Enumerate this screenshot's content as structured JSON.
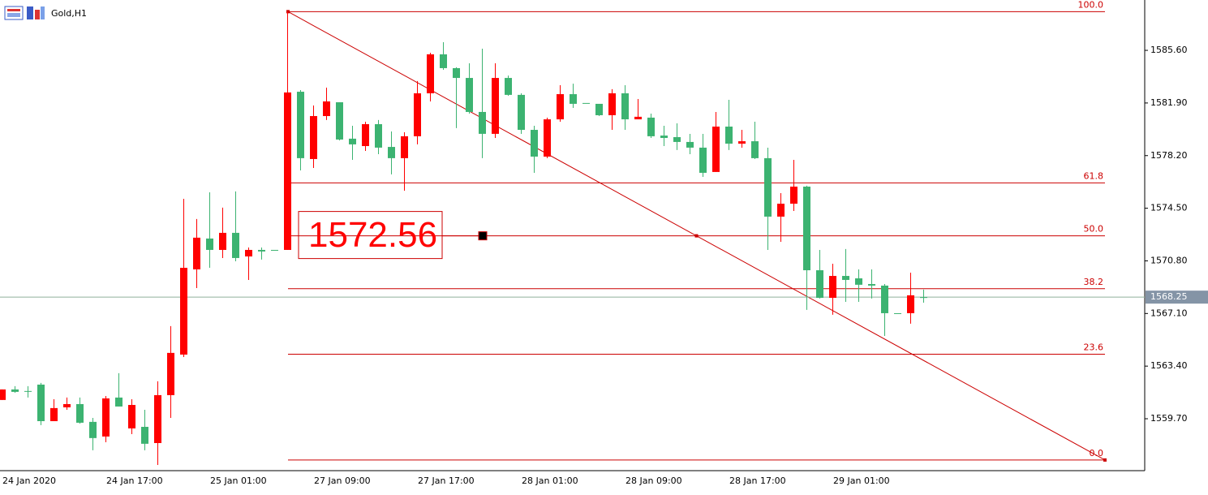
{
  "chart_data": {
    "type": "candlestick",
    "title": "Gold,H1",
    "categories": [
      "24 Jan 2020",
      null,
      null,
      null,
      null,
      null,
      null,
      null,
      "24 Jan 17:00",
      null,
      null,
      null,
      null,
      null,
      null,
      null,
      "25 Jan 01:00",
      null,
      null,
      null,
      null,
      null,
      null,
      null,
      "27 Jan 09:00",
      null,
      null,
      null,
      null,
      null,
      null,
      null,
      "27 Jan 17:00",
      null,
      null,
      null,
      null,
      null,
      null,
      null,
      "28 Jan 01:00",
      null,
      null,
      null,
      null,
      null,
      null,
      null,
      "28 Jan 09:00",
      null,
      null,
      null,
      null,
      null,
      null,
      null,
      "28 Jan 17:00",
      null,
      null,
      null,
      null,
      null,
      null,
      null,
      "29 Jan 01:00",
      null,
      null,
      null,
      null,
      null,
      null,
      null
    ],
    "open": [
      1561.76,
      1561.59,
      1561.65,
      1559.53,
      1560.45,
      1560.73,
      1559.42,
      1558.34,
      1561.13,
      1560.56,
      1560.67,
      1557.94,
      1561.36,
      1564.33,
      1570.31,
      1572.43,
      1571.57,
      1572.77,
      1571.0,
      1571.57,
      1571.46,
      1571.57,
      1582.64,
      1578.02,
      1580.98,
      1582.01,
      1579.33,
      1578.99,
      1580.41,
      1578.76,
      1578.02,
      1579.56,
      1582.58,
      1585.32,
      1584.35,
      1583.66,
      1581.27,
      1579.73,
      1583.66,
      1582.47,
      1580.01,
      1578.13,
      1580.75,
      1582.52,
      1581.84,
      1581.9,
      1581.04,
      1582.58,
      1580.75,
      1580.93,
      1579.56,
      1579.44,
      1579.16,
      1578.76,
      1576.99,
      1580.24,
      1579.04,
      1579.21,
      1578.02,
      1573.91,
      1574.82,
      1576.02,
      1570.14,
      1568.2,
      1569.74,
      1569.46,
      1569.12,
      1569.06,
      1567.12,
      1567.12,
      1568.38,
      1568.2
    ],
    "high": [
      1561.76,
      1561.99,
      1561.99,
      1562.22,
      1561.07,
      1561.19,
      1561.19,
      1559.76,
      1561.3,
      1562.9,
      1561.07,
      1560.33,
      1562.33,
      1566.21,
      1575.16,
      1573.74,
      1575.62,
      1574.54,
      1575.68,
      1571.74,
      1571.74,
      1571.57,
      1588.32,
      1582.81,
      1581.72,
      1582.98,
      1581.95,
      1580.3,
      1580.58,
      1580.7,
      1579.9,
      1579.84,
      1583.44,
      1585.43,
      1586.17,
      1584.41,
      1584.69,
      1585.72,
      1584.69,
      1583.83,
      1582.58,
      1580.3,
      1580.87,
      1583.15,
      1583.26,
      1581.9,
      1581.84,
      1582.87,
      1583.15,
      1582.18,
      1581.15,
      1580.3,
      1580.47,
      1579.73,
      1579.73,
      1581.27,
      1582.12,
      1580.01,
      1580.58,
      1578.76,
      1575.56,
      1577.9,
      1576.08,
      1571.57,
      1570.6,
      1571.63,
      1570.2,
      1570.2,
      1569.17,
      1567.12,
      1569.97,
      1568.78
    ],
    "low": [
      1561.02,
      1561.53,
      1561.19,
      1559.25,
      1559.53,
      1560.33,
      1559.36,
      1557.48,
      1558.05,
      1560.56,
      1558.62,
      1557.48,
      1556.45,
      1559.76,
      1564.04,
      1568.89,
      1570.31,
      1571.0,
      1570.77,
      1569.46,
      1570.89,
      1571.57,
      1571.57,
      1577.16,
      1577.33,
      1580.7,
      1579.27,
      1577.9,
      1578.53,
      1578.3,
      1576.88,
      1575.73,
      1578.99,
      1582.01,
      1584.23,
      1580.13,
      1581.15,
      1578.02,
      1579.44,
      1582.41,
      1579.73,
      1576.99,
      1578.02,
      1580.58,
      1581.55,
      1581.9,
      1580.98,
      1580.01,
      1580.01,
      1580.75,
      1579.44,
      1578.87,
      1578.59,
      1578.3,
      1576.7,
      1577.05,
      1578.59,
      1578.76,
      1577.96,
      1571.57,
      1572.14,
      1574.31,
      1567.35,
      1568.15,
      1567.01,
      1567.92,
      1567.92,
      1568.15,
      1565.52,
      1567.12,
      1566.38,
      1567.86
    ],
    "close": [
      1561.02,
      1561.76,
      1561.65,
      1562.1,
      1559.53,
      1560.5,
      1560.73,
      1559.48,
      1558.45,
      1561.19,
      1559.02,
      1559.13,
      1557.99,
      1561.36,
      1564.21,
      1570.2,
      1572.37,
      1571.57,
      1572.77,
      1571.11,
      1571.57,
      1571.57,
      1571.57,
      1582.69,
      1577.96,
      1580.98,
      1581.95,
      1579.39,
      1578.87,
      1580.41,
      1578.81,
      1578.02,
      1579.56,
      1582.58,
      1585.32,
      1584.35,
      1583.66,
      1581.27,
      1579.73,
      1583.66,
      1582.47,
      1580.01,
      1578.13,
      1580.75,
      1582.52,
      1581.9,
      1581.84,
      1581.04,
      1582.58,
      1580.75,
      1580.87,
      1579.61,
      1579.5,
      1579.16,
      1578.76,
      1577.05,
      1580.24,
      1579.04,
      1579.21,
      1578.02,
      1573.91,
      1574.82,
      1576.02,
      1570.14,
      1568.2,
      1569.74,
      1569.57,
      1569.17,
      1569.06,
      1567.12,
      1567.12,
      1568.25
    ],
    "up_color": "#3cb371",
    "down_color": "#ff0000",
    "ylim": [
      1556.05,
      1589.14
    ],
    "yticks": [
      {
        "value": 1585.6,
        "label": "1585.60"
      },
      {
        "value": 1581.9,
        "label": "1581.90"
      },
      {
        "value": 1578.2,
        "label": "1578.20"
      },
      {
        "value": 1574.5,
        "label": "1574.50"
      },
      {
        "value": 1570.8,
        "label": "1570.80"
      },
      {
        "value": 1567.1,
        "label": "1567.10"
      },
      {
        "value": 1563.4,
        "label": "1563.40"
      },
      {
        "value": 1559.7,
        "label": "1559.70"
      }
    ],
    "grid": false,
    "current_price": 1568.25,
    "current_price_color": "#8fb09c",
    "fibonacci": {
      "high": 1588.32,
      "low": 1556.8,
      "color": "#cc0000",
      "levels": [
        {
          "value": 100,
          "label": "100.0"
        },
        61.8,
        {
          "value": 50,
          "label": "50.0"
        },
        38.2,
        23.6,
        {
          "value": 0,
          "label": "0.0"
        }
      ]
    },
    "price_label": 1572.56
  }
}
